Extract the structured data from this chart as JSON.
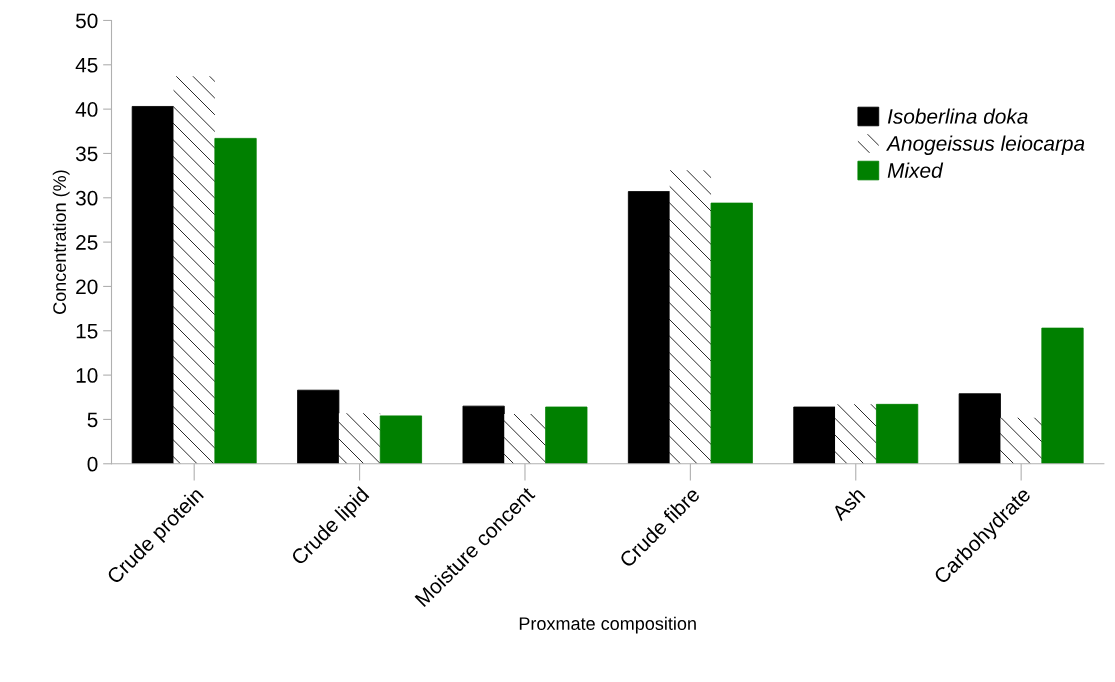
{
  "chart_data": {
    "type": "bar",
    "xlabel": "Proxmate composition",
    "ylabel": "Concentration (%)",
    "categories": [
      "Crude protein",
      "Crude lipid",
      "Moisture concent",
      "Crude fibre",
      "Ash",
      "Carbohydrate"
    ],
    "series": [
      {
        "name": "Isoberlina doka",
        "color": "#000000",
        "values": [
          40.3,
          8.3,
          6.5,
          30.7,
          6.4,
          7.9
        ]
      },
      {
        "name": "Anogeissus leiocarpa",
        "color": "#ffffff",
        "values": [
          43.7,
          5.7,
          5.6,
          33.1,
          6.7,
          5.2
        ]
      },
      {
        "name": "Mixed",
        "color": "#008000",
        "values": [
          36.7,
          5.4,
          6.4,
          29.4,
          6.7,
          15.3
        ]
      }
    ],
    "ylim": [
      0,
      50
    ],
    "yticks": [
      0,
      5,
      10,
      15,
      20,
      25,
      30,
      35,
      40,
      45,
      50
    ],
    "grid": false,
    "legend": "right"
  }
}
